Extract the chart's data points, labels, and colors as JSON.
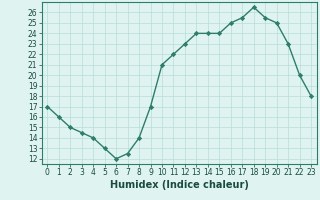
{
  "title": "",
  "xlabel": "Humidex (Indice chaleur)",
  "ylabel": "",
  "x": [
    0,
    1,
    2,
    3,
    4,
    5,
    6,
    7,
    8,
    9,
    10,
    11,
    12,
    13,
    14,
    15,
    16,
    17,
    18,
    19,
    20,
    21,
    22,
    23
  ],
  "y": [
    17,
    16,
    15,
    14.5,
    14,
    13,
    12,
    12.5,
    14,
    17,
    21,
    22,
    23,
    24,
    24,
    24,
    25,
    25.5,
    26.5,
    25.5,
    25,
    23,
    20,
    18
  ],
  "line_color": "#2e7d6b",
  "marker": "D",
  "marker_size": 2.2,
  "bg_color": "#dff4f0",
  "grid_color": "#b8ddd8",
  "xlim": [
    -0.5,
    23.5
  ],
  "ylim": [
    11.5,
    27.0
  ],
  "yticks": [
    12,
    13,
    14,
    15,
    16,
    17,
    18,
    19,
    20,
    21,
    22,
    23,
    24,
    25,
    26
  ],
  "xticks": [
    0,
    1,
    2,
    3,
    4,
    5,
    6,
    7,
    8,
    9,
    10,
    11,
    12,
    13,
    14,
    15,
    16,
    17,
    18,
    19,
    20,
    21,
    22,
    23
  ],
  "xlabel_fontsize": 7,
  "tick_fontsize": 5.5,
  "line_width": 1.0
}
